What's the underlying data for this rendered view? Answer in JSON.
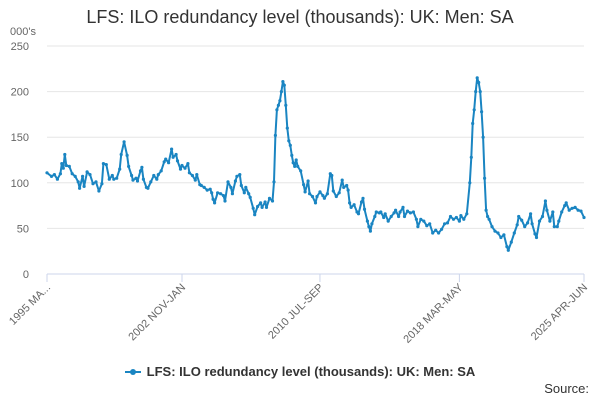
{
  "chart_data": {
    "type": "line",
    "title": "LFS: ILO redundancy level (thousands): UK: Men: SA",
    "unit_label": "000's",
    "ylim": [
      0,
      250
    ],
    "y_ticks": [
      0,
      50,
      100,
      150,
      200,
      250
    ],
    "x_tick_labels": [
      "1995 MA...",
      "2002 NOV-JAN",
      "2010 JUL-SEP",
      "2018 MAR-MAY",
      "2025 APR-JUN"
    ],
    "x_tick_index": [
      0,
      91,
      184,
      278,
      362
    ],
    "legend": [
      "LFS: ILO redundancy level (thousands): UK: Men: SA"
    ],
    "source_label": "Source:",
    "line_color": "#1a85c2",
    "series": [
      {
        "name": "LFS: ILO redundancy level (thousands): UK: Men: SA",
        "x_range": [
          "1995 MAR-MAY",
          "2025 APR-JUN"
        ],
        "anchors": [
          [
            0,
            111
          ],
          [
            3,
            107
          ],
          [
            5,
            109
          ],
          [
            7,
            104
          ],
          [
            9,
            110
          ],
          [
            10,
            121
          ],
          [
            11,
            116
          ],
          [
            12,
            131
          ],
          [
            13,
            119
          ],
          [
            15,
            118
          ],
          [
            17,
            110
          ],
          [
            19,
            107
          ],
          [
            21,
            101
          ],
          [
            22,
            94
          ],
          [
            24,
            107
          ],
          [
            25,
            96
          ],
          [
            27,
            112
          ],
          [
            29,
            109
          ],
          [
            31,
            99
          ],
          [
            33,
            101
          ],
          [
            35,
            91
          ],
          [
            37,
            99
          ],
          [
            38,
            121
          ],
          [
            40,
            120
          ],
          [
            42,
            104
          ],
          [
            44,
            108
          ],
          [
            45,
            104
          ],
          [
            47,
            105
          ],
          [
            49,
            115
          ],
          [
            50,
            131
          ],
          [
            52,
            145
          ],
          [
            54,
            130
          ],
          [
            55,
            118
          ],
          [
            57,
            108
          ],
          [
            58,
            103
          ],
          [
            60,
            105
          ],
          [
            61,
            102
          ],
          [
            63,
            113
          ],
          [
            64,
            117
          ],
          [
            65,
            104
          ],
          [
            67,
            95
          ],
          [
            68,
            94
          ],
          [
            70,
            101
          ],
          [
            72,
            108
          ],
          [
            74,
            104
          ],
          [
            75,
            109
          ],
          [
            77,
            113
          ],
          [
            79,
            123
          ],
          [
            80,
            126
          ],
          [
            82,
            122
          ],
          [
            84,
            137
          ],
          [
            85,
            128
          ],
          [
            87,
            131
          ],
          [
            88,
            124
          ],
          [
            90,
            115
          ],
          [
            91,
            119
          ],
          [
            93,
            116
          ],
          [
            95,
            121
          ],
          [
            96,
            111
          ],
          [
            98,
            108
          ],
          [
            100,
            103
          ],
          [
            101,
            109
          ],
          [
            103,
            98
          ],
          [
            104,
            97
          ],
          [
            106,
            95
          ],
          [
            108,
            92
          ],
          [
            110,
            93
          ],
          [
            111,
            89
          ],
          [
            112,
            82
          ],
          [
            113,
            78
          ],
          [
            115,
            89
          ],
          [
            117,
            88
          ],
          [
            119,
            86
          ],
          [
            120,
            80
          ],
          [
            122,
            101
          ],
          [
            124,
            95
          ],
          [
            125,
            88
          ],
          [
            127,
            102
          ],
          [
            128,
            107
          ],
          [
            130,
            109
          ],
          [
            131,
            97
          ],
          [
            133,
            89
          ],
          [
            134,
            95
          ],
          [
            136,
            88
          ],
          [
            137,
            84
          ],
          [
            139,
            72
          ],
          [
            140,
            65
          ],
          [
            142,
            74
          ],
          [
            144,
            78
          ],
          [
            145,
            73
          ],
          [
            147,
            79
          ],
          [
            148,
            73
          ],
          [
            150,
            83
          ],
          [
            152,
            80
          ],
          [
            153,
            101
          ],
          [
            154,
            152
          ],
          [
            155,
            180
          ],
          [
            156,
            185
          ],
          [
            157,
            190
          ],
          [
            158,
            200
          ],
          [
            159,
            211
          ],
          [
            160,
            207
          ],
          [
            161,
            185
          ],
          [
            162,
            160
          ],
          [
            163,
            146
          ],
          [
            164,
            141
          ],
          [
            165,
            130
          ],
          [
            166,
            122
          ],
          [
            167,
            118
          ],
          [
            168,
            125
          ],
          [
            169,
            118
          ],
          [
            171,
            113
          ],
          [
            173,
            98
          ],
          [
            174,
            90
          ],
          [
            176,
            102
          ],
          [
            177,
            88
          ],
          [
            179,
            85
          ],
          [
            181,
            78
          ],
          [
            182,
            85
          ],
          [
            184,
            90
          ],
          [
            186,
            86
          ],
          [
            187,
            83
          ],
          [
            189,
            88
          ],
          [
            191,
            110
          ],
          [
            192,
            108
          ],
          [
            193,
            91
          ],
          [
            195,
            85
          ],
          [
            197,
            89
          ],
          [
            199,
            103
          ],
          [
            200,
            95
          ],
          [
            202,
            97
          ],
          [
            203,
            92
          ],
          [
            204,
            78
          ],
          [
            205,
            73
          ],
          [
            207,
            76
          ],
          [
            209,
            68
          ],
          [
            210,
            66
          ],
          [
            212,
            79
          ],
          [
            213,
            83
          ],
          [
            214,
            71
          ],
          [
            216,
            58
          ],
          [
            217,
            52
          ],
          [
            218,
            47
          ],
          [
            219,
            55
          ],
          [
            221,
            63
          ],
          [
            222,
            68
          ],
          [
            224,
            67
          ],
          [
            225,
            68
          ],
          [
            227,
            62
          ],
          [
            228,
            66
          ],
          [
            230,
            58
          ],
          [
            232,
            63
          ],
          [
            234,
            67
          ],
          [
            235,
            70
          ],
          [
            237,
            63
          ],
          [
            238,
            68
          ],
          [
            240,
            73
          ],
          [
            241,
            63
          ],
          [
            243,
            69
          ],
          [
            245,
            67
          ],
          [
            247,
            68
          ],
          [
            249,
            60
          ],
          [
            250,
            52
          ],
          [
            252,
            60
          ],
          [
            254,
            58
          ],
          [
            256,
            53
          ],
          [
            258,
            55
          ],
          [
            260,
            45
          ],
          [
            262,
            48
          ],
          [
            264,
            45
          ],
          [
            266,
            49
          ],
          [
            268,
            55
          ],
          [
            270,
            56
          ],
          [
            272,
            63
          ],
          [
            274,
            60
          ],
          [
            276,
            62
          ],
          [
            278,
            58
          ],
          [
            279,
            64
          ],
          [
            281,
            60
          ],
          [
            283,
            66
          ],
          [
            285,
            100
          ],
          [
            286,
            128
          ],
          [
            287,
            165
          ],
          [
            288,
            180
          ],
          [
            289,
            200
          ],
          [
            290,
            215
          ],
          [
            291,
            210
          ],
          [
            292,
            200
          ],
          [
            293,
            178
          ],
          [
            294,
            150
          ],
          [
            295,
            105
          ],
          [
            296,
            70
          ],
          [
            297,
            63
          ],
          [
            298,
            60
          ],
          [
            300,
            52
          ],
          [
            302,
            47
          ],
          [
            304,
            45
          ],
          [
            306,
            40
          ],
          [
            308,
            43
          ],
          [
            310,
            30
          ],
          [
            311,
            26
          ],
          [
            313,
            35
          ],
          [
            315,
            45
          ],
          [
            317,
            54
          ],
          [
            318,
            63
          ],
          [
            320,
            59
          ],
          [
            322,
            52
          ],
          [
            324,
            56
          ],
          [
            326,
            66
          ],
          [
            327,
            55
          ],
          [
            329,
            44
          ],
          [
            330,
            40
          ],
          [
            332,
            58
          ],
          [
            334,
            63
          ],
          [
            336,
            80
          ],
          [
            337,
            70
          ],
          [
            339,
            58
          ],
          [
            341,
            68
          ],
          [
            342,
            52
          ],
          [
            344,
            52
          ],
          [
            345,
            58
          ],
          [
            347,
            68
          ],
          [
            349,
            75
          ],
          [
            350,
            78
          ],
          [
            352,
            70
          ],
          [
            354,
            72
          ],
          [
            356,
            73
          ],
          [
            358,
            70
          ],
          [
            360,
            69
          ],
          [
            362,
            62
          ]
        ]
      }
    ]
  }
}
